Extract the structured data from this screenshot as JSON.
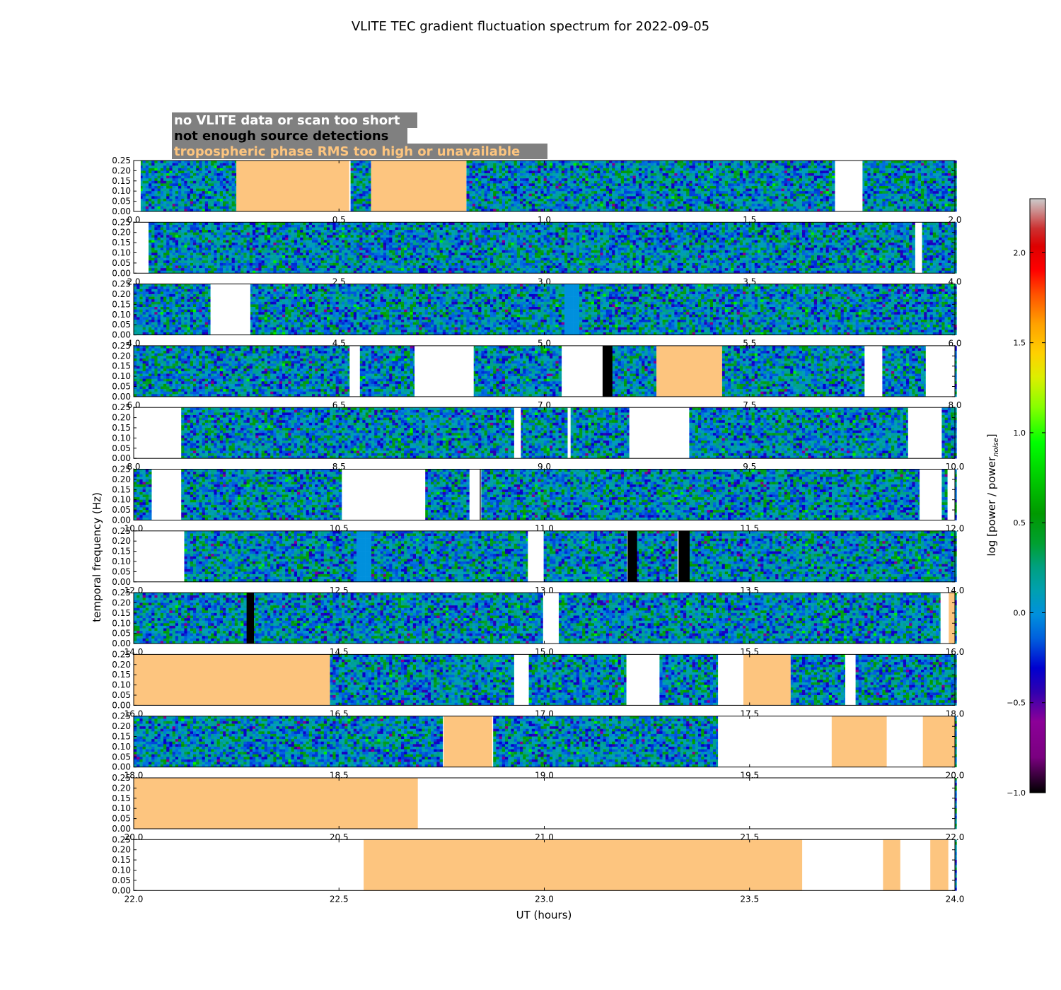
{
  "chart_data": {
    "type": "heatmap",
    "title": "VLITE TEC gradient fluctuation spectrum for 2022-09-05",
    "xlabel": "UT (hours)",
    "ylabel": "temporal frequency (Hz)",
    "colorbar_label": "log [power / power",
    "colorbar_label_sub": "noise",
    "colorbar_label_end": "]",
    "colorbar_range": [
      -1.0,
      2.3
    ],
    "colorbar_ticks": [
      "−1.0",
      "−0.5",
      "0.0",
      "0.5",
      "1.0",
      "1.5",
      "2.0"
    ],
    "colorbar_tick_values": [
      -1.0,
      -0.5,
      0.0,
      0.5,
      1.0,
      1.5,
      2.0
    ],
    "ylim": [
      0,
      0.25
    ],
    "y_ticks": [
      "0.00",
      "0.05",
      "0.10",
      "0.15",
      "0.20",
      "0.25"
    ],
    "y_tick_values": [
      0.0,
      0.05,
      0.1,
      0.15,
      0.2,
      0.25
    ],
    "legend": [
      {
        "label": "no VLITE data or scan too short",
        "color": "#ffffff"
      },
      {
        "label": "not enough source detections",
        "color": "#000000"
      },
      {
        "label": "tropospheric phase RMS too high or unavailable",
        "color": "#fdc57f"
      }
    ],
    "legend_background": "#808080",
    "flag_colors": {
      "missing": "#ffffff",
      "no_detect": "#000000",
      "tropo": "#fdc57f"
    },
    "panels": [
      {
        "range": [
          0,
          2
        ],
        "x_ticks": [
          "0.0",
          "0.5",
          "1.0",
          "1.5",
          "2.0"
        ],
        "missing": [
          [
            0.0,
            0.017
          ],
          [
            1.71,
            1.775
          ]
        ],
        "no_detect": [],
        "tropo": [
          [
            0.25,
            0.525
          ],
          [
            0.578,
            0.81
          ]
        ],
        "uniform": []
      },
      {
        "range": [
          2,
          4
        ],
        "x_ticks": [
          "2.0",
          "2.5",
          "3.0",
          "3.5",
          "4.0"
        ],
        "missing": [
          [
            2.0,
            2.036
          ],
          [
            3.904,
            3.92
          ]
        ],
        "no_detect": [],
        "tropo": [],
        "uniform": []
      },
      {
        "range": [
          4,
          6
        ],
        "x_ticks": [
          "4.0",
          "4.5",
          "5.0",
          "5.5",
          "6.0"
        ],
        "missing": [
          [
            4.187,
            4.284
          ]
        ],
        "no_detect": [],
        "tropo": [],
        "uniform": [
          [
            5.05,
            5.085
          ]
        ]
      },
      {
        "range": [
          6,
          8
        ],
        "x_ticks": [
          "6.0",
          "6.5",
          "7.0",
          "7.5",
          "8.0"
        ],
        "missing": [
          [
            6.526,
            6.551
          ],
          [
            6.684,
            6.828
          ],
          [
            7.045,
            7.142
          ],
          [
            7.78,
            7.822
          ],
          [
            7.929,
            7.999
          ],
          [
            7.96,
            8.0
          ]
        ],
        "no_detect": [
          [
            7.142,
            7.166
          ]
        ],
        "tropo": [
          [
            7.273,
            7.433
          ]
        ],
        "uniform": []
      },
      {
        "range": [
          8,
          10
        ],
        "x_ticks": [
          "8.0",
          "8.5",
          "9.0",
          "9.5",
          "10.0"
        ],
        "missing": [
          [
            8.0,
            8.115
          ],
          [
            8.928,
            8.943
          ],
          [
            9.058,
            9.064
          ],
          [
            9.207,
            9.35
          ],
          [
            9.886,
            9.965
          ]
        ],
        "no_detect": [],
        "tropo": [],
        "uniform": []
      },
      {
        "range": [
          10,
          12
        ],
        "x_ticks": [
          "10.0",
          "10.5",
          "11.0",
          "11.5",
          "12.0"
        ],
        "missing": [
          [
            10.044,
            10.115
          ],
          [
            10.508,
            10.71
          ],
          [
            10.818,
            10.843
          ],
          [
            11.914,
            11.967
          ],
          [
            11.982,
            12.0
          ]
        ],
        "no_detect": [
          [
            10.843,
            10.845
          ]
        ],
        "tropo": [],
        "uniform": []
      },
      {
        "range": [
          12,
          14
        ],
        "x_ticks": [
          "12.0",
          "12.5",
          "13.0",
          "13.5",
          "14.0"
        ],
        "missing": [
          [
            12.0,
            12.123
          ],
          [
            12.96,
            12.998
          ]
        ],
        "no_detect": [
          [
            13.203,
            13.226
          ],
          [
            13.327,
            13.354
          ]
        ],
        "tropo": [],
        "uniform": [
          [
            12.542,
            12.58
          ]
        ]
      },
      {
        "range": [
          14,
          16
        ],
        "x_ticks": [
          "14.0",
          "14.5",
          "15.0",
          "15.5",
          "16.0"
        ],
        "missing": [
          [
            14.997,
            15.035
          ],
          [
            15.965,
            15.985
          ]
        ],
        "no_detect": [
          [
            14.275,
            14.293
          ]
        ],
        "tropo": [
          [
            15.985,
            16.0
          ]
        ],
        "uniform": []
      },
      {
        "range": [
          16,
          18
        ],
        "x_ticks": [
          "16.0",
          "16.5",
          "17.0",
          "17.5",
          "18.0"
        ],
        "missing": [
          [
            16.928,
            16.962
          ],
          [
            17.2,
            17.28
          ],
          [
            17.423,
            17.485
          ],
          [
            17.733,
            17.758
          ]
        ],
        "no_detect": [],
        "tropo": [
          [
            16.0,
            16.478
          ],
          [
            17.485,
            17.6
          ]
        ],
        "uniform": []
      },
      {
        "range": [
          18,
          20
        ],
        "x_ticks": [
          "18.0",
          "18.5",
          "19.0",
          "19.5",
          "20.0"
        ],
        "missing": [
          [
            19.423,
            19.7
          ],
          [
            19.834,
            19.922
          ]
        ],
        "no_detect": [],
        "tropo": [
          [
            18.755,
            18.873
          ],
          [
            19.7,
            19.834
          ],
          [
            19.922,
            20.0
          ]
        ],
        "uniform": []
      },
      {
        "range": [
          20,
          22
        ],
        "x_ticks": [
          "20.0",
          "20.5",
          "21.0",
          "21.5",
          "22.0"
        ],
        "missing": [
          [
            20.692,
            22.0
          ]
        ],
        "no_detect": [],
        "tropo": [
          [
            20.0,
            20.692
          ]
        ],
        "uniform": []
      },
      {
        "range": [
          22,
          24
        ],
        "x_ticks": [
          "22.0",
          "22.5",
          "23.0",
          "23.5",
          "24.0"
        ],
        "missing": [
          [
            22.0,
            22.56
          ],
          [
            23.628,
            23.825
          ],
          [
            23.867,
            23.94
          ],
          [
            23.984,
            24.0
          ]
        ],
        "no_detect": [],
        "tropo": [
          [
            22.56,
            23.628
          ],
          [
            23.825,
            23.867
          ],
          [
            23.94,
            23.984
          ]
        ],
        "uniform": []
      }
    ]
  }
}
